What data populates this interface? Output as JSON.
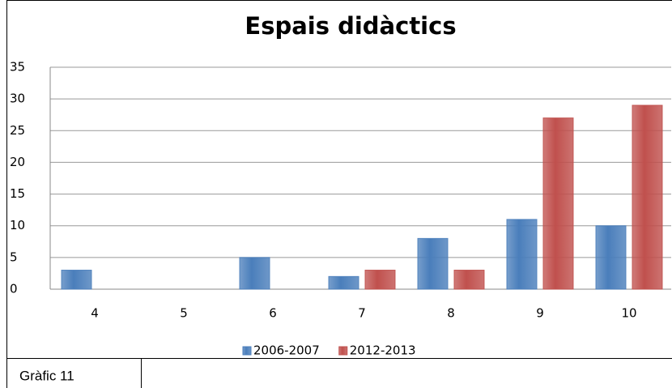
{
  "chart_data": {
    "type": "bar",
    "title": "Espais didàctics",
    "categories": [
      "4",
      "5",
      "6",
      "7",
      "8",
      "9",
      "10"
    ],
    "series": [
      {
        "name": "2006-2007",
        "color": "#4a7ebb",
        "values": [
          3,
          0,
          5,
          2,
          8,
          11,
          10
        ]
      },
      {
        "name": "2012-2013",
        "color": "#c0504d",
        "values": [
          0,
          0,
          0,
          3,
          3,
          27,
          29
        ]
      }
    ],
    "ylim": [
      0,
      35
    ],
    "yticks": [
      0,
      5,
      10,
      15,
      20,
      25,
      30,
      35
    ],
    "grid": true,
    "legend": "bottom"
  },
  "caption": "Gràfic 11"
}
